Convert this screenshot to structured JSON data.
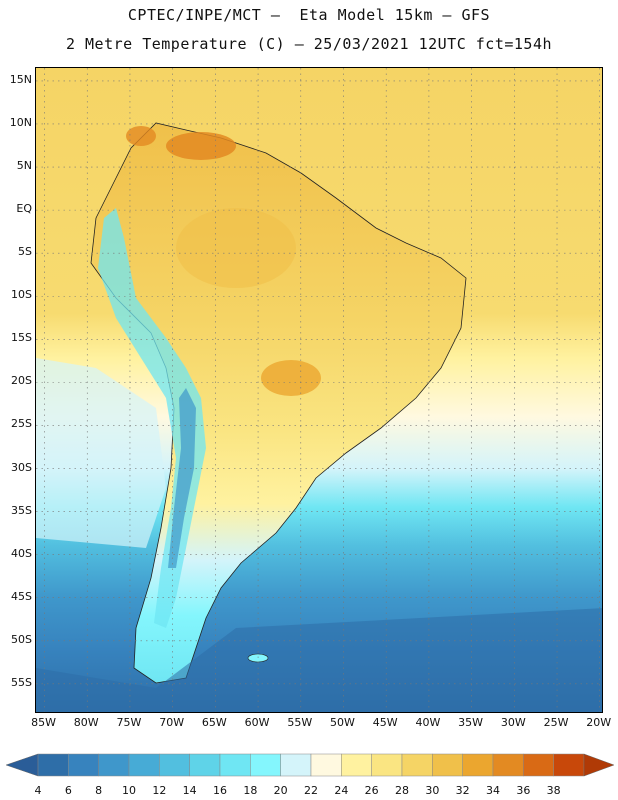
{
  "header": {
    "line1": "CPTEC/INPE/MCT –  Eta Model 15km – GFS",
    "line2": "2 Metre Temperature (C) – 25/03/2021 12UTC fct=154h"
  },
  "map": {
    "lat_ticks": [
      "15N",
      "10N",
      "5N",
      "EQ",
      "5S",
      "10S",
      "15S",
      "20S",
      "25S",
      "30S",
      "35S",
      "40S",
      "45S",
      "50S",
      "55S"
    ],
    "lon_ticks": [
      "85W",
      "80W",
      "75W",
      "70W",
      "65W",
      "60W",
      "55W",
      "50W",
      "45W",
      "40W",
      "35W",
      "30W",
      "25W",
      "20W"
    ],
    "lat_range": [
      16.5,
      -58.5
    ],
    "lon_range": [
      -86.0,
      -19.5
    ],
    "gridlines": true
  },
  "colorbar": {
    "labels": [
      "4",
      "6",
      "8",
      "10",
      "12",
      "14",
      "16",
      "18",
      "20",
      "22",
      "24",
      "26",
      "28",
      "30",
      "32",
      "34",
      "36",
      "38"
    ],
    "colors": [
      "#2e6ea8",
      "#3783be",
      "#3f97cb",
      "#47abd6",
      "#52bfdf",
      "#5fd3e8",
      "#6fe6f3",
      "#84f6fd",
      "#d4f4fa",
      "#fff9e0",
      "#fff2a0",
      "#fae582",
      "#f5d465",
      "#f0c04a",
      "#eba62f",
      "#e38a22",
      "#d96a15",
      "#c8480a"
    ],
    "arrow_low_color": "#2a5d98",
    "arrow_high_color": "#b03a06"
  }
}
